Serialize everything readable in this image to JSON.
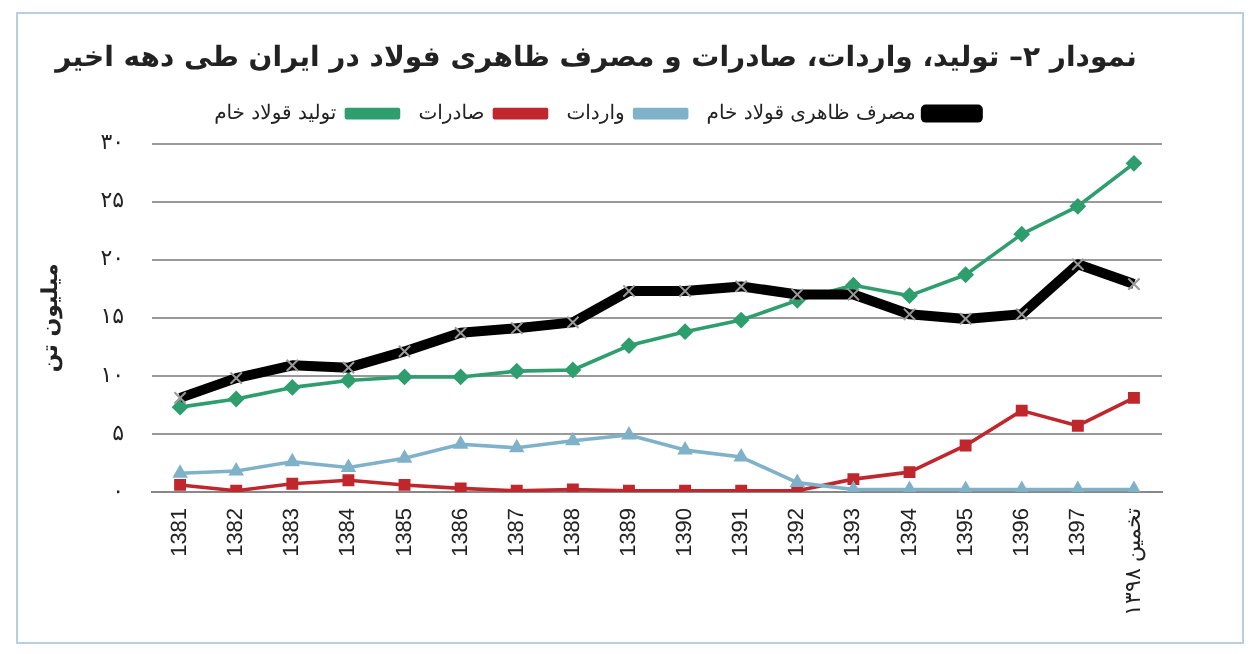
{
  "chart_data": {
    "type": "line",
    "title": "نمودار ۲– تولید، واردات، صادرات و مصرف ظاهری فولاد در ایران طی دهه اخیر",
    "ylabel": "میلیون تن",
    "categories": [
      "1381",
      "1382",
      "1383",
      "1384",
      "1385",
      "1386",
      "1387",
      "1388",
      "1389",
      "1390",
      "1391",
      "1392",
      "1393",
      "1394",
      "1395",
      "1396",
      "1397",
      "تخمین ۱۳۹۸"
    ],
    "series": [
      {
        "name": "تولید قولاد خام",
        "color": "#2e9e6e",
        "marker": "diamond",
        "values": [
          7.3,
          8.0,
          9.0,
          9.6,
          9.9,
          9.9,
          10.4,
          10.5,
          12.6,
          13.8,
          14.8,
          16.5,
          17.8,
          16.9,
          18.7,
          22.2,
          24.6,
          28.3
        ]
      },
      {
        "name": "صادرات",
        "color": "#c0272d",
        "marker": "square",
        "values": [
          0.6,
          0.1,
          0.7,
          1.0,
          0.6,
          0.3,
          0.1,
          0.2,
          0.1,
          0.1,
          0.1,
          0.1,
          1.1,
          1.7,
          4.0,
          7.0,
          5.7,
          8.1
        ]
      },
      {
        "name": "واردات",
        "color": "#7fb2c8",
        "marker": "triangle",
        "values": [
          1.6,
          1.8,
          2.6,
          2.1,
          2.9,
          4.1,
          3.8,
          4.4,
          4.9,
          3.6,
          3.0,
          0.8,
          0.2,
          0.2,
          0.2,
          0.2,
          0.2,
          0.2
        ]
      },
      {
        "name": "مصرف ظاهری قولاد خام",
        "color": "#000000",
        "marker": "cross",
        "values": [
          8.1,
          9.8,
          10.9,
          10.7,
          12.1,
          13.7,
          14.1,
          14.6,
          17.3,
          17.3,
          17.7,
          17.0,
          17.0,
          15.3,
          14.9,
          15.3,
          19.6,
          17.9
        ]
      }
    ],
    "ylim": [
      0,
      30
    ],
    "yticks": [
      {
        "value": 0,
        "label": "۰"
      },
      {
        "value": 5,
        "label": "۵"
      },
      {
        "value": 10,
        "label": "۱۰"
      },
      {
        "value": 15,
        "label": "۱۵"
      },
      {
        "value": 20,
        "label": "۲۰"
      },
      {
        "value": 25,
        "label": "۲۵"
      },
      {
        "value": 30,
        "label": "۳۰"
      }
    ],
    "grid": "y",
    "legend": "top",
    "line_style": "solid"
  }
}
